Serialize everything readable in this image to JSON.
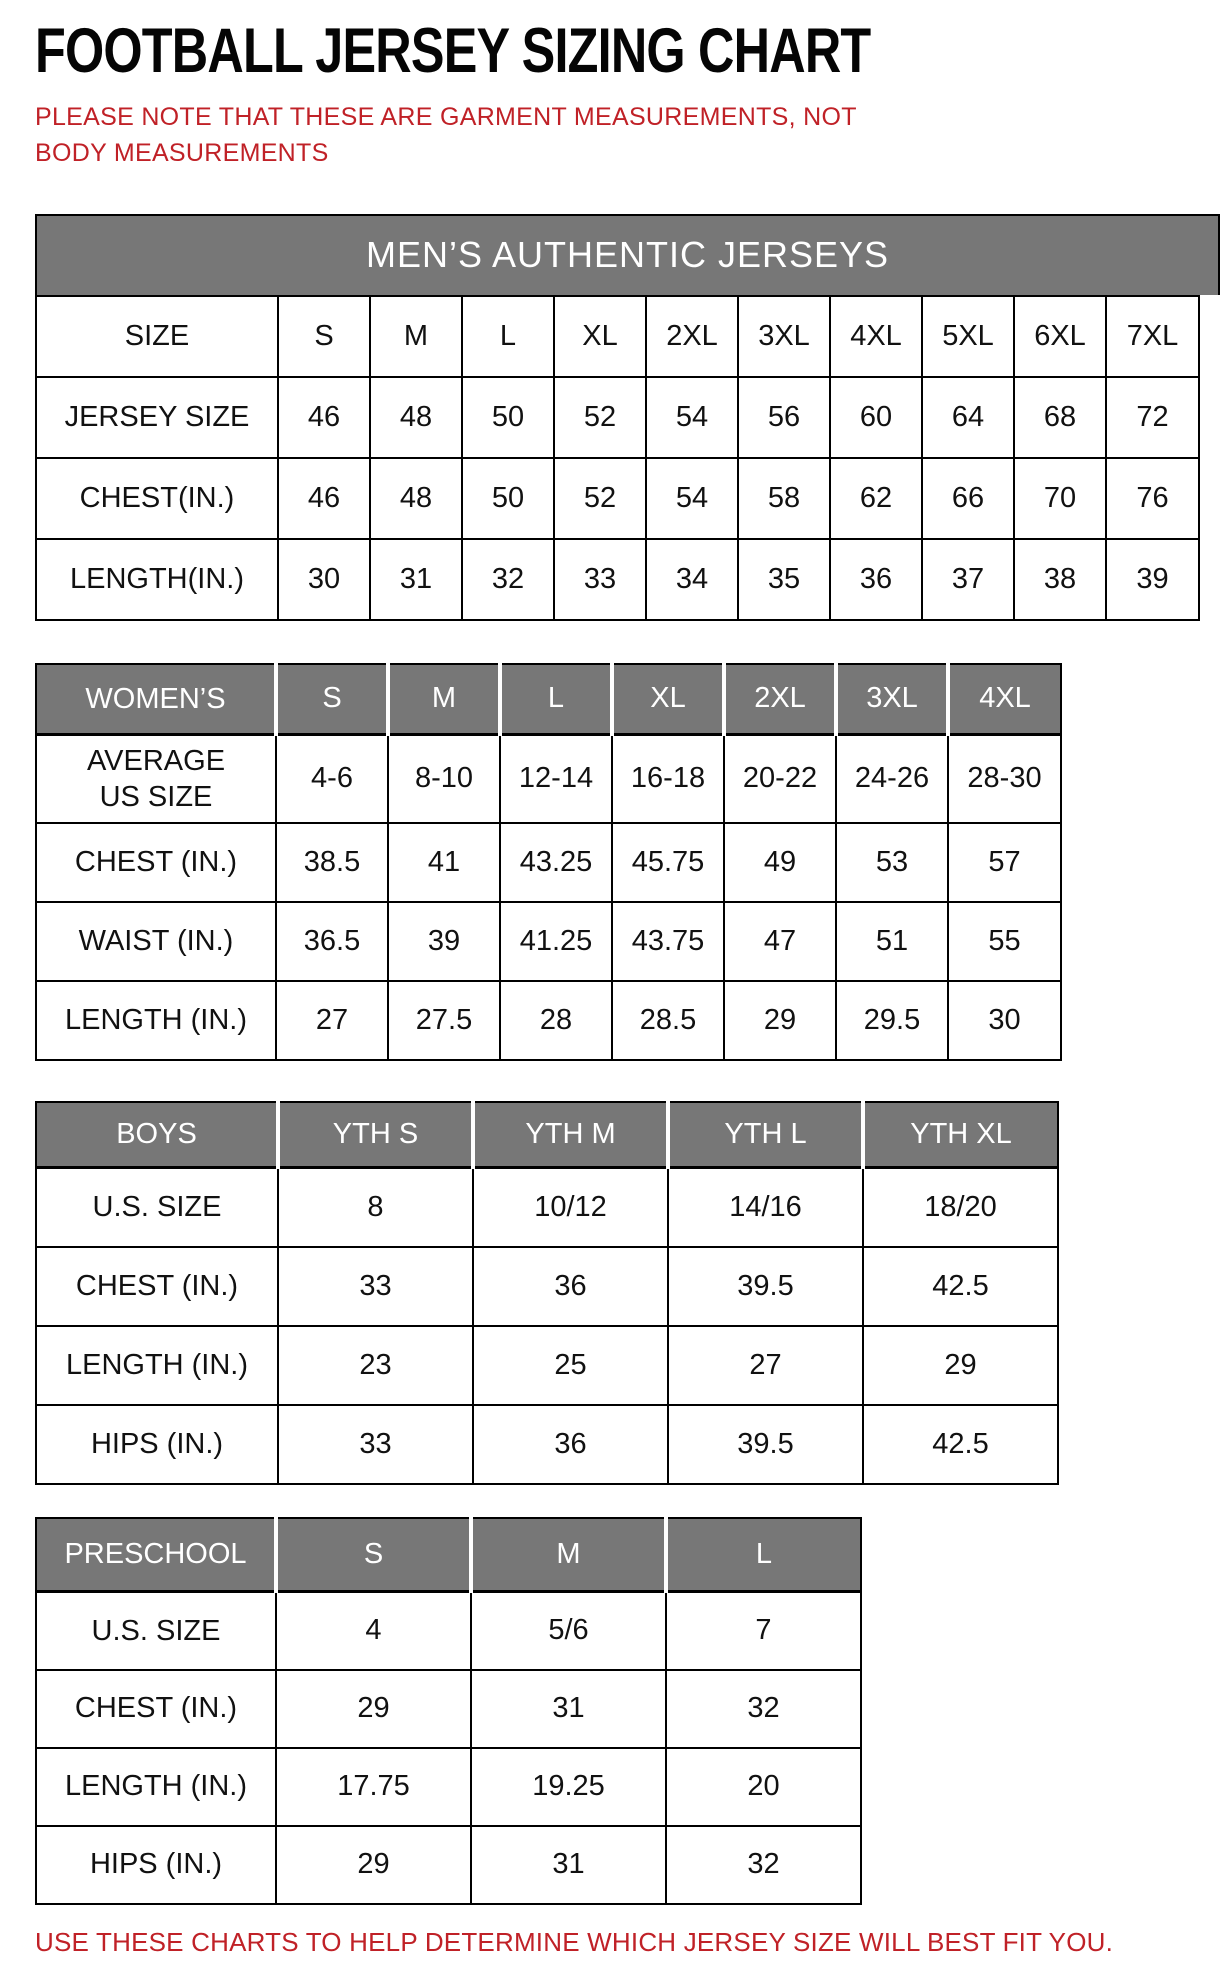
{
  "page": {
    "title": "FOOTBALL JERSEY SIZING CHART",
    "note": "PLEASE NOTE THAT THESE ARE GARMENT MEASUREMENTS, NOT BODY MEASUREMENTS",
    "footer": "USE THESE CHARTS TO HELP DETERMINE WHICH JERSEY SIZE WILL BEST FIT YOU."
  },
  "colors": {
    "accent_red": "#c02127",
    "header_gray": "#777777",
    "border_black": "#000000"
  },
  "tables": {
    "mens": {
      "banner": "MEN’S AUTHENTIC JERSEYS",
      "rows": [
        {
          "label": "SIZE",
          "values": [
            "S",
            "M",
            "L",
            "XL",
            "2XL",
            "3XL",
            "4XL",
            "5XL",
            "6XL",
            "7XL"
          ]
        },
        {
          "label": "JERSEY SIZE",
          "values": [
            "46",
            "48",
            "50",
            "52",
            "54",
            "56",
            "60",
            "64",
            "68",
            "72"
          ]
        },
        {
          "label": "CHEST(IN.)",
          "values": [
            "46",
            "48",
            "50",
            "52",
            "54",
            "58",
            "62",
            "66",
            "70",
            "76"
          ]
        },
        {
          "label": "LENGTH(IN.)",
          "values": [
            "30",
            "31",
            "32",
            "33",
            "34",
            "35",
            "36",
            "37",
            "38",
            "39"
          ]
        }
      ]
    },
    "womens": {
      "rows": [
        {
          "header": true,
          "label": "WOMEN’S",
          "values": [
            "S",
            "M",
            "L",
            "XL",
            "2XL",
            "3XL",
            "4XL"
          ]
        },
        {
          "label": "AVERAGE\nUS SIZE",
          "values": [
            "4-6",
            "8-10",
            "12-14",
            "16-18",
            "20-22",
            "24-26",
            "28-30"
          ]
        },
        {
          "label": "CHEST (IN.)",
          "values": [
            "38.5",
            "41",
            "43.25",
            "45.75",
            "49",
            "53",
            "57"
          ]
        },
        {
          "label": "WAIST (IN.)",
          "values": [
            "36.5",
            "39",
            "41.25",
            "43.75",
            "47",
            "51",
            "55"
          ]
        },
        {
          "label": "LENGTH (IN.)",
          "values": [
            "27",
            "27.5",
            "28",
            "28.5",
            "29",
            "29.5",
            "30"
          ]
        }
      ]
    },
    "boys": {
      "rows": [
        {
          "header": true,
          "label": "BOYS",
          "values": [
            "YTH S",
            "YTH M",
            "YTH L",
            "YTH XL"
          ]
        },
        {
          "label": "U.S. SIZE",
          "values": [
            "8",
            "10/12",
            "14/16",
            "18/20"
          ]
        },
        {
          "label": "CHEST (IN.)",
          "values": [
            "33",
            "36",
            "39.5",
            "42.5"
          ]
        },
        {
          "label": "LENGTH (IN.)",
          "values": [
            "23",
            "25",
            "27",
            "29"
          ]
        },
        {
          "label": "HIPS (IN.)",
          "values": [
            "33",
            "36",
            "39.5",
            "42.5"
          ]
        }
      ]
    },
    "preschool": {
      "rows": [
        {
          "header": true,
          "label": "PRESCHOOL",
          "values": [
            "S",
            "M",
            "L"
          ]
        },
        {
          "label": "U.S. SIZE",
          "values": [
            "4",
            "5/6",
            "7"
          ]
        },
        {
          "label": "CHEST (IN.)",
          "values": [
            "29",
            "31",
            "32"
          ]
        },
        {
          "label": "LENGTH (IN.)",
          "values": [
            "17.75",
            "19.25",
            "20"
          ]
        },
        {
          "label": "HIPS (IN.)",
          "values": [
            "29",
            "31",
            "32"
          ]
        }
      ]
    }
  }
}
